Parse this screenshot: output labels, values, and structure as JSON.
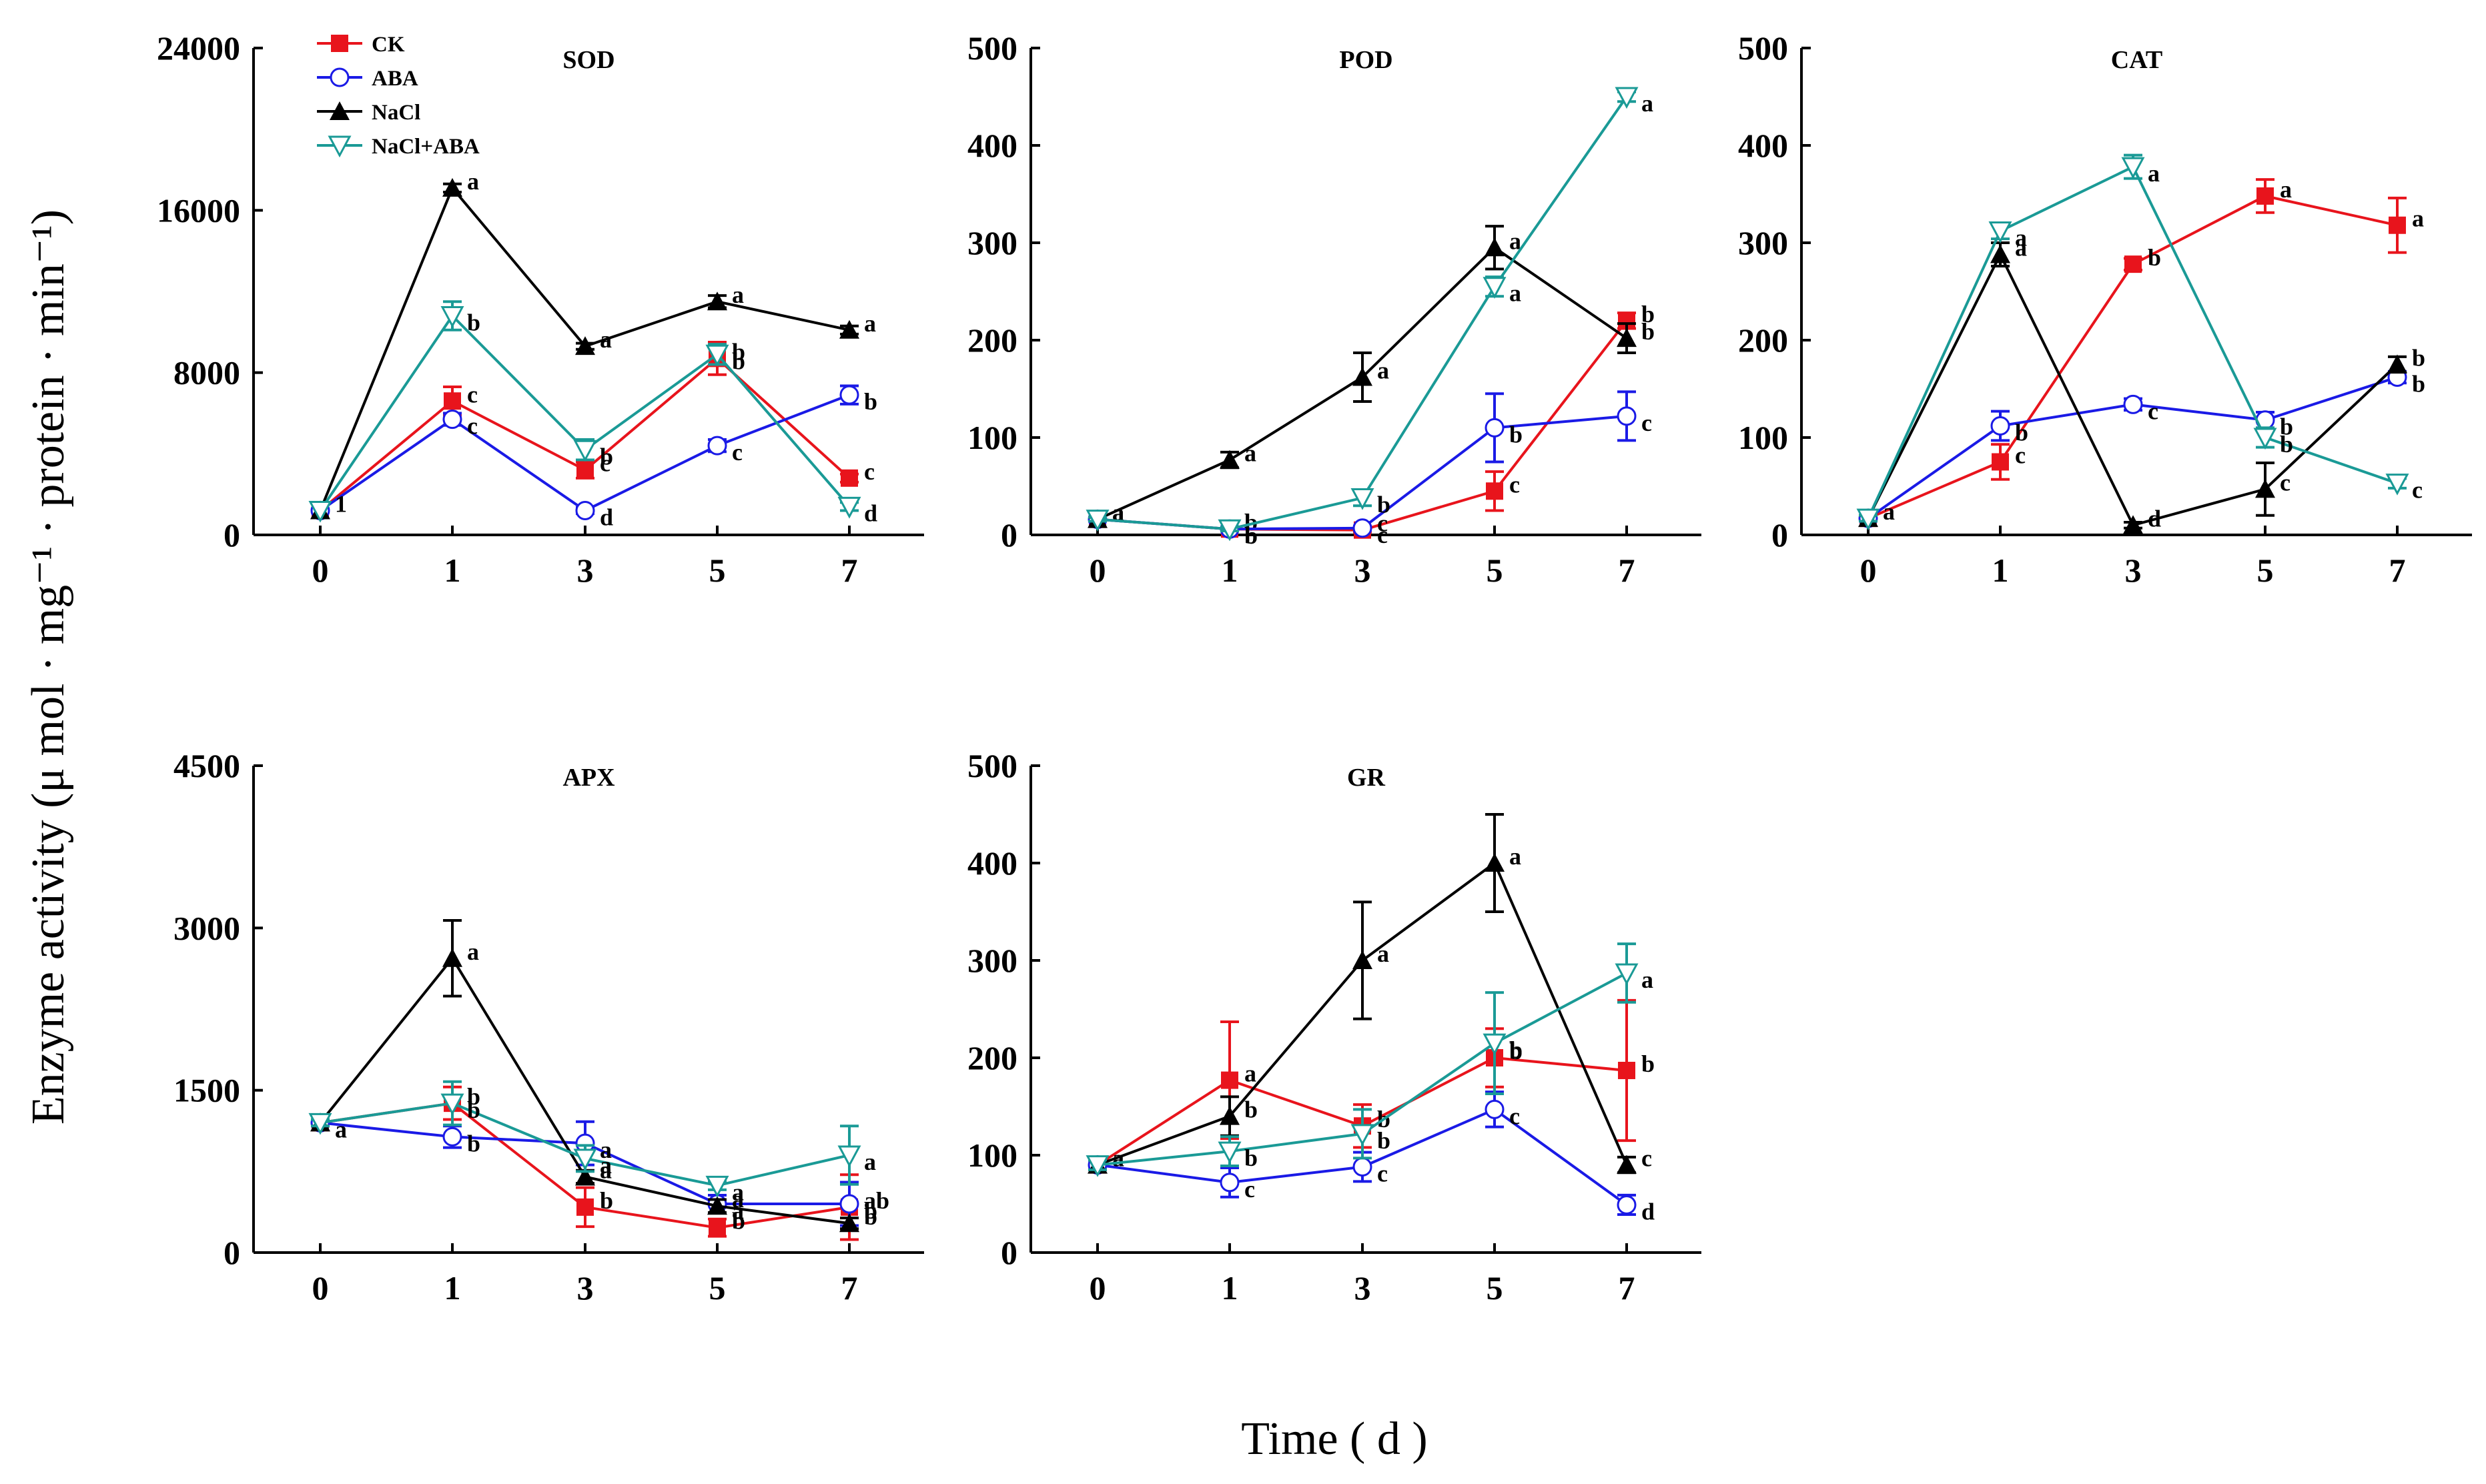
{
  "chart_data": {
    "type": "line",
    "ylabel": "Enzyme activity (μ mol · mg⁻¹ · protein · min⁻¹)",
    "xlabel": "Time ( d )",
    "legend": {
      "placement": "top-left of SOD panel",
      "entries": [
        {
          "name": "CK",
          "color": "#e8141c",
          "marker": "square-filled"
        },
        {
          "name": "ABA",
          "color": "#1a1ae6",
          "marker": "circle-open"
        },
        {
          "name": "NaCl",
          "color": "#000000",
          "marker": "triangle-up-filled"
        },
        {
          "name": "NaCl+ABA",
          "color": "#1a9a96",
          "marker": "triangle-down-open"
        }
      ]
    },
    "panels": [
      {
        "title": "SOD",
        "x": [
          "0",
          "1",
          "3",
          "5",
          "7"
        ],
        "ylim": [
          0,
          24000
        ],
        "yticks": [
          "0",
          "8000",
          "16000",
          "24000"
        ],
        "series": [
          {
            "name": "CK",
            "values": [
              1200,
              6600,
              3200,
              8700,
              2800
            ],
            "errors": [
              0,
              700,
              400,
              800,
              200
            ],
            "labels": [
              "",
              "c",
              "c",
              "b",
              "c"
            ]
          },
          {
            "name": "ABA",
            "values": [
              1200,
              5700,
              1200,
              4400,
              6900
            ],
            "errors": [
              0,
              300,
              150,
              300,
              450
            ],
            "labels": [
              "",
              "c",
              "d",
              "c",
              "b"
            ]
          },
          {
            "name": "NaCl",
            "values": [
              1200,
              17100,
              9300,
              11500,
              10100
            ],
            "errors": [
              0,
              200,
              150,
              300,
              200
            ],
            "labels": [
              "1",
              "a",
              "a",
              "a",
              "a"
            ]
          },
          {
            "name": "NaCl+ABA",
            "values": [
              1200,
              10800,
              4200,
              8900,
              1400
            ],
            "errors": [
              0,
              700,
              500,
              500,
              200
            ],
            "labels": [
              "",
              "b",
              "b",
              "b",
              "d"
            ]
          }
        ]
      },
      {
        "title": "POD",
        "x": [
          "0",
          "1",
          "3",
          "5",
          "7"
        ],
        "ylim": [
          0,
          500
        ],
        "yticks": [
          "0",
          "100",
          "200",
          "300",
          "400",
          "500"
        ],
        "series": [
          {
            "name": "CK",
            "values": [
              16,
              6,
              5,
              45,
              220
            ],
            "errors": [
              2,
              2,
              2,
              20,
              8
            ],
            "labels": [
              "a",
              "b",
              "c",
              "c",
              "b"
            ]
          },
          {
            "name": "ABA",
            "values": [
              16,
              6,
              7,
              110,
              122
            ],
            "errors": [
              2,
              2,
              2,
              35,
              25
            ],
            "labels": [
              "",
              "b",
              "c",
              "b",
              "c"
            ]
          },
          {
            "name": "NaCl",
            "values": [
              16,
              77,
              162,
              295,
              202
            ],
            "errors": [
              2,
              8,
              25,
              22,
              15
            ],
            "labels": [
              "a",
              "a",
              "a",
              "a",
              "b"
            ]
          },
          {
            "name": "NaCl+ABA",
            "values": [
              16,
              6,
              38,
              255,
              450
            ],
            "errors": [
              2,
              2,
              8,
              10,
              5
            ],
            "labels": [
              "",
              "b",
              "b",
              "a",
              "a"
            ]
          }
        ]
      },
      {
        "title": "CAT",
        "x": [
          "0",
          "1",
          "3",
          "5",
          "7"
        ],
        "ylim": [
          0,
          500
        ],
        "yticks": [
          "0",
          "100",
          "200",
          "300",
          "400",
          "500"
        ],
        "series": [
          {
            "name": "CK",
            "values": [
              17,
              75,
              278,
              348,
              318
            ],
            "errors": [
              3,
              18,
              6,
              17,
              28
            ],
            "labels": [
              "a",
              "c",
              "b",
              "a",
              "a"
            ]
          },
          {
            "name": "ABA",
            "values": [
              17,
              112,
              134,
              118,
              162
            ],
            "errors": [
              3,
              15,
              6,
              8,
              6
            ],
            "labels": [
              "",
              "b",
              "c",
              "b",
              "b"
            ]
          },
          {
            "name": "NaCl",
            "values": [
              17,
              288,
              10,
              47,
              175
            ],
            "errors": [
              3,
              12,
              3,
              27,
              8
            ],
            "labels": [
              "",
              "a",
              "d",
              "c",
              "b"
            ]
          },
          {
            "name": "NaCl+ABA",
            "values": [
              17,
              312,
              378,
              100,
              53
            ],
            "errors": [
              3,
              8,
              12,
              10,
              5
            ],
            "labels": [
              "",
              "a",
              "a",
              "b",
              "c"
            ]
          }
        ]
      },
      {
        "title": "APX",
        "x": [
          "0",
          "1",
          "3",
          "5",
          "7"
        ],
        "ylim": [
          0,
          4500
        ],
        "yticks": [
          "0",
          "1500",
          "3000",
          "4500"
        ],
        "series": [
          {
            "name": "CK",
            "values": [
              1200,
              1380,
              420,
              230,
              420
            ],
            "errors": [
              30,
              150,
              180,
              80,
              300
            ],
            "labels": [
              "",
              "b",
              "b",
              "b",
              "ab"
            ]
          },
          {
            "name": "ABA",
            "values": [
              1200,
              1070,
              1010,
              450,
              450
            ],
            "errors": [
              30,
              100,
              200,
              80,
              200
            ],
            "labels": [
              "a",
              "b",
              "a",
              "a",
              "b"
            ]
          },
          {
            "name": "NaCl",
            "values": [
              1200,
              2720,
              700,
              430,
              270
            ],
            "errors": [
              30,
              350,
              60,
              60,
              50
            ],
            "labels": [
              "",
              "a",
              "a",
              "a",
              "b"
            ]
          },
          {
            "name": "NaCl+ABA",
            "values": [
              1200,
              1380,
              870,
              620,
              900
            ],
            "errors": [
              30,
              200,
              120,
              40,
              270
            ],
            "labels": [
              "",
              "b",
              "a",
              "a",
              "a"
            ]
          }
        ]
      },
      {
        "title": "GR",
        "x": [
          "0",
          "1",
          "3",
          "5",
          "7"
        ],
        "ylim": [
          0,
          500
        ],
        "yticks": [
          "0",
          "100",
          "200",
          "300",
          "400",
          "500"
        ],
        "series": [
          {
            "name": "CK",
            "values": [
              90,
              177,
              130,
              200,
              187
            ],
            "errors": [
              5,
              60,
              22,
              30,
              72
            ],
            "labels": [
              "",
              "a",
              "b",
              "b",
              "b"
            ]
          },
          {
            "name": "ABA",
            "values": [
              90,
              72,
              88,
              147,
              49
            ],
            "errors": [
              5,
              15,
              15,
              18,
              10
            ],
            "labels": [
              "",
              "c",
              "c",
              "c",
              "d"
            ]
          },
          {
            "name": "NaCl",
            "values": [
              90,
              140,
              300,
              400,
              90
            ],
            "errors": [
              5,
              20,
              60,
              50,
              8
            ],
            "labels": [
              "a",
              "b",
              "a",
              "a",
              "c"
            ]
          },
          {
            "name": "NaCl+ABA",
            "values": [
              90,
              104,
              122,
              215,
              287
            ],
            "errors": [
              5,
              15,
              25,
              52,
              30
            ],
            "labels": [
              "",
              "b",
              "b",
              "b",
              "a"
            ]
          }
        ]
      }
    ]
  }
}
